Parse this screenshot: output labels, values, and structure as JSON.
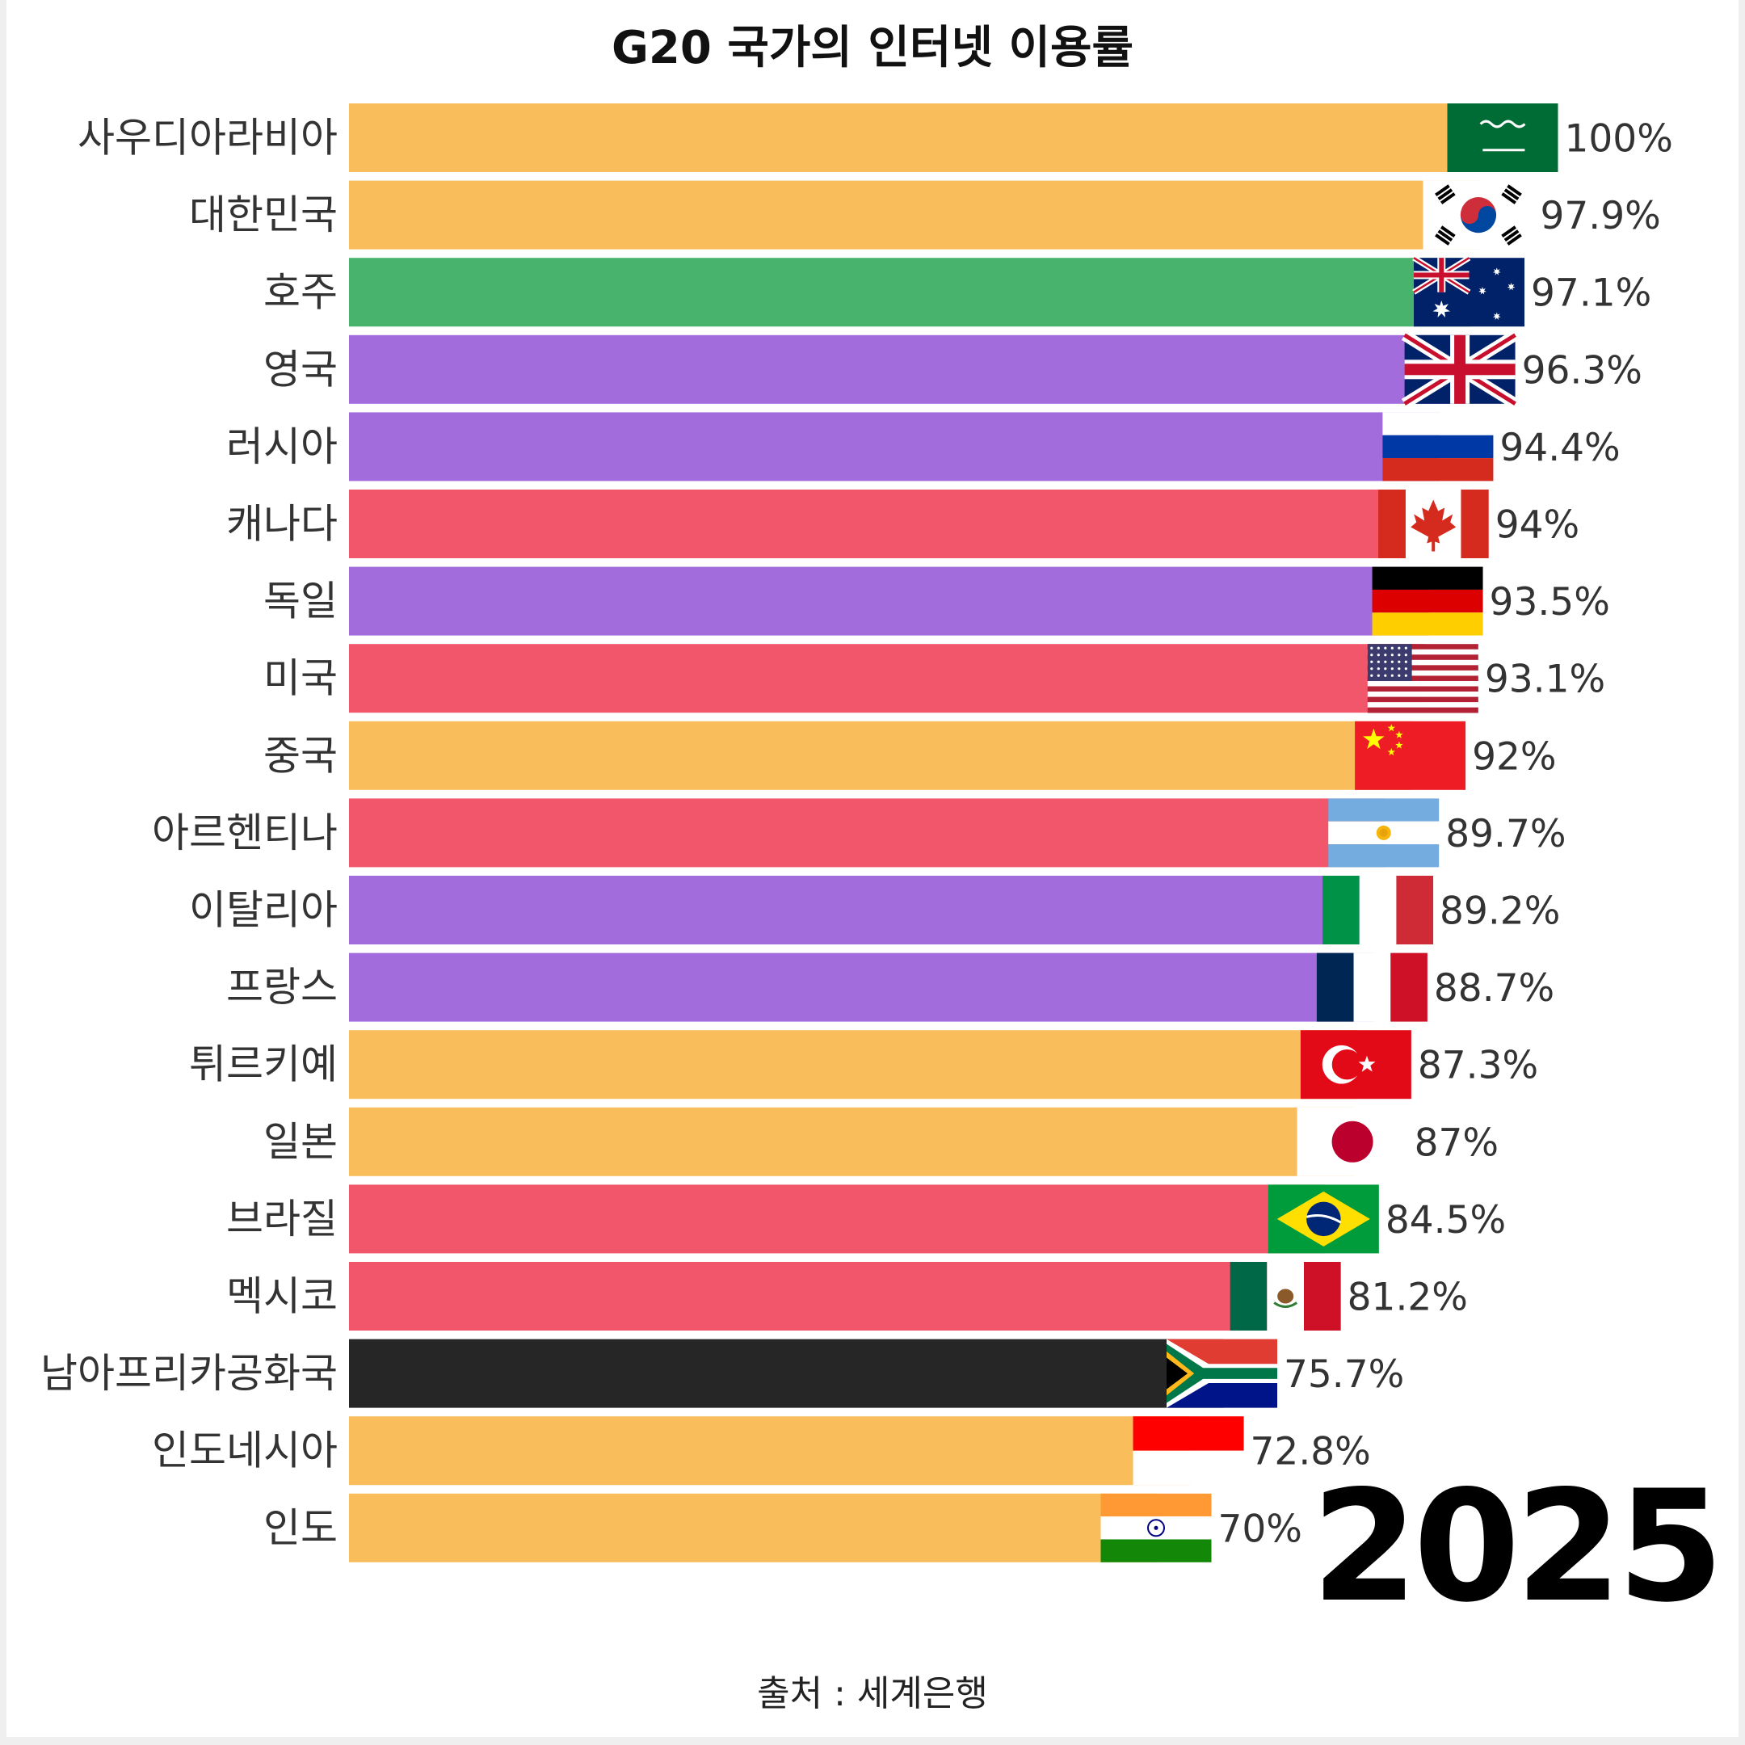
{
  "chart_data": {
    "type": "bar",
    "orientation": "horizontal",
    "title": "G20 국가의 인터넷 이용률",
    "xlim": [
      0,
      100
    ],
    "grid": false,
    "year": "2025",
    "source": "출처 : 세계은행",
    "bars": [
      {
        "category": "사우디아라비아",
        "value": 100,
        "value_label": "100%",
        "color": "#F9BE5B",
        "flag": "saudi-arabia"
      },
      {
        "category": "대한민국",
        "value": 97.9,
        "value_label": "97.9%",
        "color": "#F9BE5B",
        "flag": "south-korea"
      },
      {
        "category": "호주",
        "value": 97.1,
        "value_label": "97.1%",
        "color": "#48B36C",
        "flag": "australia"
      },
      {
        "category": "영국",
        "value": 96.3,
        "value_label": "96.3%",
        "color": "#A36CDC",
        "flag": "united-kingdom"
      },
      {
        "category": "러시아",
        "value": 94.4,
        "value_label": "94.4%",
        "color": "#A36CDC",
        "flag": "russia"
      },
      {
        "category": "캐나다",
        "value": 94,
        "value_label": "94%",
        "color": "#F2566A",
        "flag": "canada"
      },
      {
        "category": "독일",
        "value": 93.5,
        "value_label": "93.5%",
        "color": "#A36CDC",
        "flag": "germany"
      },
      {
        "category": "미국",
        "value": 93.1,
        "value_label": "93.1%",
        "color": "#F2566A",
        "flag": "united-states"
      },
      {
        "category": "중국",
        "value": 92,
        "value_label": "92%",
        "color": "#F9BE5B",
        "flag": "china"
      },
      {
        "category": "아르헨티나",
        "value": 89.7,
        "value_label": "89.7%",
        "color": "#F2566A",
        "flag": "argentina"
      },
      {
        "category": "이탈리아",
        "value": 89.2,
        "value_label": "89.2%",
        "color": "#A36CDC",
        "flag": "italy"
      },
      {
        "category": "프랑스",
        "value": 88.7,
        "value_label": "88.7%",
        "color": "#A36CDC",
        "flag": "france"
      },
      {
        "category": "튀르키예",
        "value": 87.3,
        "value_label": "87.3%",
        "color": "#F9BE5B",
        "flag": "turkey"
      },
      {
        "category": "일본",
        "value": 87,
        "value_label": "87%",
        "color": "#F9BE5B",
        "flag": "japan"
      },
      {
        "category": "브라질",
        "value": 84.5,
        "value_label": "84.5%",
        "color": "#F2566A",
        "flag": "brazil"
      },
      {
        "category": "멕시코",
        "value": 81.2,
        "value_label": "81.2%",
        "color": "#F2566A",
        "flag": "mexico"
      },
      {
        "category": "남아프리카공화국",
        "value": 75.7,
        "value_label": "75.7%",
        "color": "#262626",
        "flag": "south-africa"
      },
      {
        "category": "인도네시아",
        "value": 72.8,
        "value_label": "72.8%",
        "color": "#F9BE5B",
        "flag": "indonesia"
      },
      {
        "category": "인도",
        "value": 70,
        "value_label": "70%",
        "color": "#F9BE5B",
        "flag": "india"
      }
    ]
  }
}
